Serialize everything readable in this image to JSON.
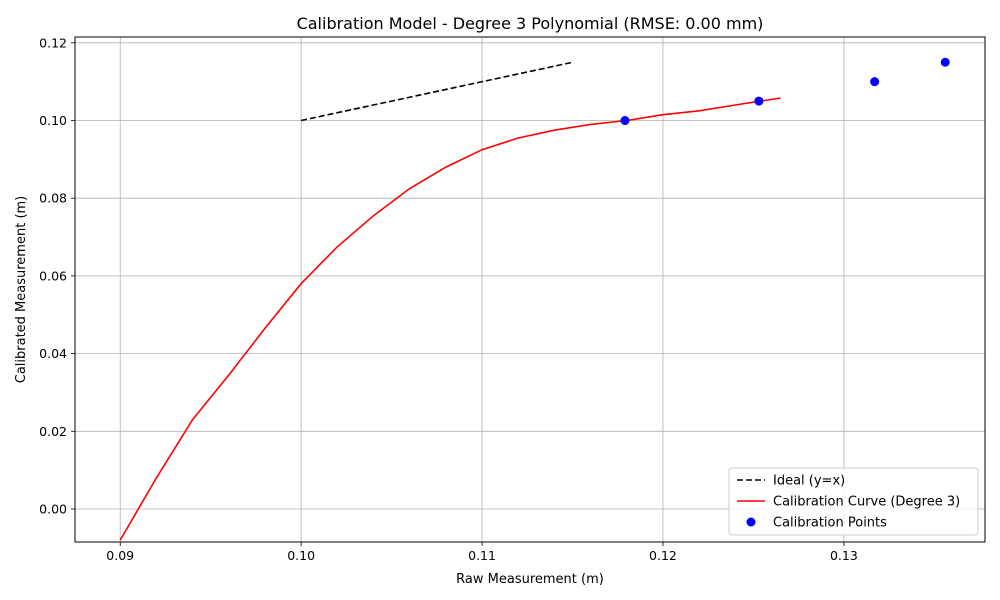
{
  "chart_data": {
    "type": "line",
    "title": "Calibration Model - Degree 3 Polynomial (RMSE: 0.00 mm)",
    "xlabel": "Raw Measurement (m)",
    "ylabel": "Calibrated Measurement (m)",
    "xlim": [
      0.0875,
      0.1378
    ],
    "ylim": [
      -0.0085,
      0.1215
    ],
    "xticks": [
      0.09,
      0.1,
      0.11,
      0.12,
      0.13
    ],
    "xtick_labels": [
      "0.09",
      "0.10",
      "0.11",
      "0.12",
      "0.13"
    ],
    "yticks": [
      0.0,
      0.02,
      0.04,
      0.06,
      0.08,
      0.1,
      0.12
    ],
    "ytick_labels": [
      "0.00",
      "0.02",
      "0.04",
      "0.06",
      "0.08",
      "0.10",
      "0.12"
    ],
    "grid": true,
    "legend_position": "bottom-right",
    "series": [
      {
        "name": "Ideal (y=x)",
        "kind": "line",
        "style": "dashed",
        "color": "#000000",
        "x": [
          0.1,
          0.115
        ],
        "y": [
          0.1,
          0.115
        ]
      },
      {
        "name": "Calibration Curve (Degree 3)",
        "kind": "line",
        "style": "solid",
        "color": "#ff0000",
        "x": [
          0.09,
          0.092,
          0.094,
          0.096,
          0.098,
          0.1,
          0.102,
          0.104,
          0.106,
          0.108,
          0.11,
          0.112,
          0.114,
          0.116,
          0.118,
          0.12,
          0.122,
          0.124,
          0.1265
        ],
        "y": [
          -0.008,
          0.008,
          0.023,
          0.0345,
          0.0465,
          0.058,
          0.0675,
          0.0755,
          0.0825,
          0.088,
          0.0925,
          0.0955,
          0.0975,
          0.099,
          0.1,
          0.1015,
          0.1025,
          0.104,
          0.1058
        ]
      },
      {
        "name": "Calibration Points",
        "kind": "scatter",
        "color": "#0000ff",
        "x": [
          0.1179,
          0.1253,
          0.1317,
          0.1356
        ],
        "y": [
          0.1,
          0.105,
          0.11,
          0.115
        ]
      }
    ]
  }
}
